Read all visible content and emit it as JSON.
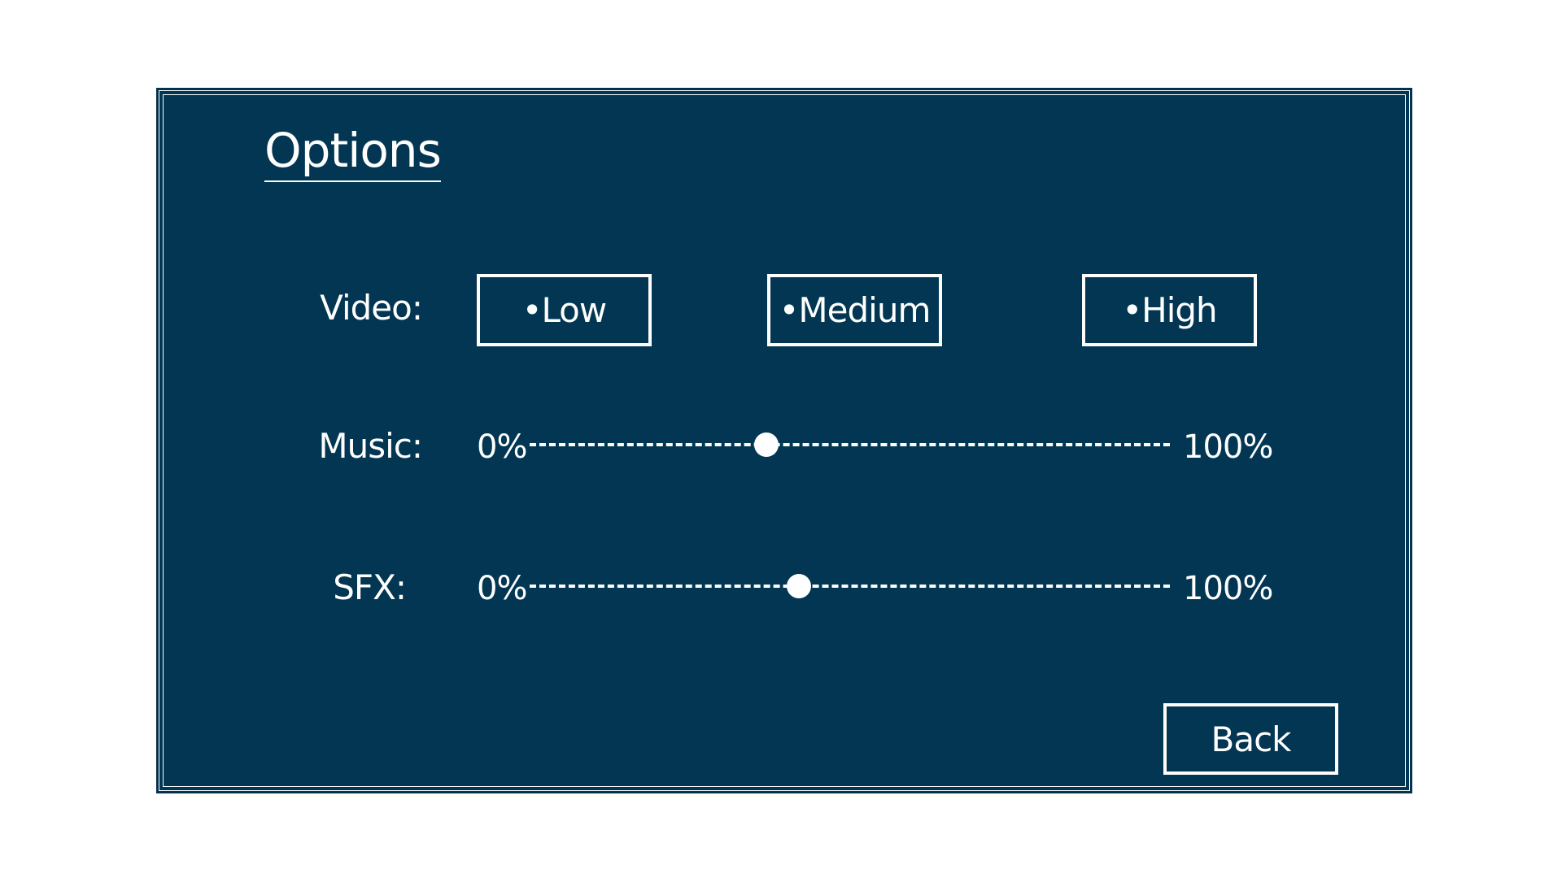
{
  "title": "Options",
  "video": {
    "label": "Video:",
    "options": [
      "•Low",
      "•Medium",
      "•High"
    ]
  },
  "music": {
    "label": "Music:",
    "min_label": "0%",
    "max_label": "100%",
    "value_fraction": 0.37
  },
  "sfx": {
    "label": "SFX:",
    "min_label": "0%",
    "max_label": "100%",
    "value_fraction": 0.42
  },
  "back_label": "Back",
  "colors": {
    "panel_bg": "#023652",
    "foreground": "#ffffff"
  }
}
